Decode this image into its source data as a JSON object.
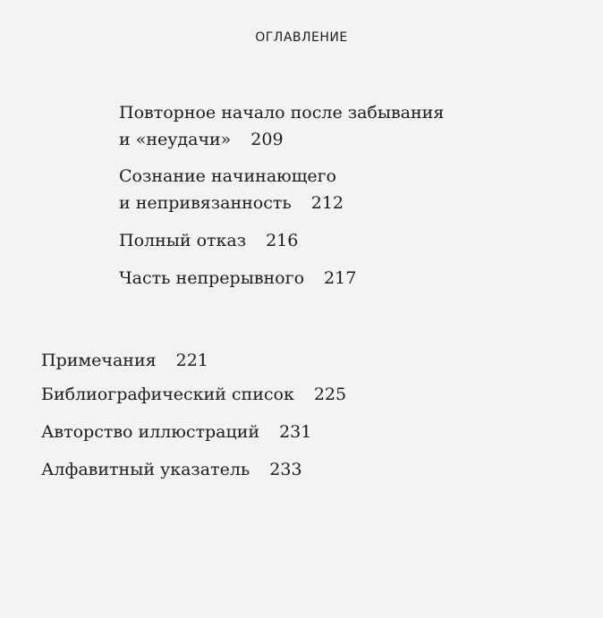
{
  "header": "ОГЛАВЛЕНИЕ",
  "sub_entries": [
    {
      "lines": [
        "Повторное начало после забывания",
        "и «неудачи»"
      ],
      "page": "209"
    },
    {
      "lines": [
        "Сознание начинающего",
        "и непривязанность"
      ],
      "page": "212"
    },
    {
      "lines": [
        "Полный отказ"
      ],
      "page": "216"
    },
    {
      "lines": [
        "Часть непрерывного"
      ],
      "page": "217"
    }
  ],
  "main_entries": [
    {
      "title": "Примечания",
      "page": "221"
    },
    {
      "title": "Библиографический список",
      "page": "225"
    },
    {
      "title": "Авторство иллюстраций",
      "page": "231"
    },
    {
      "title": "Алфавитный указатель",
      "page": "233"
    }
  ]
}
